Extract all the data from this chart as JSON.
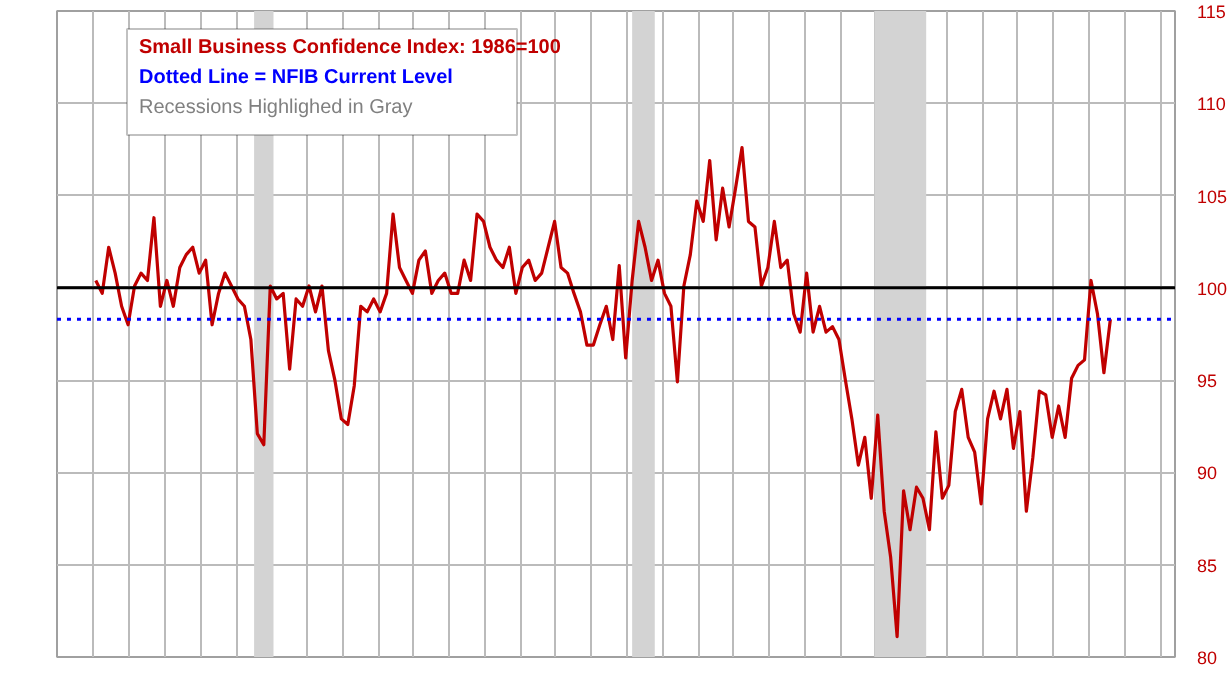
{
  "chart_data": {
    "type": "line",
    "title": "Small Business Confidence Index: 1986=100",
    "annotations": [
      "Dotted Line = NFIB Current Level",
      "Recessions Highlighed in Gray"
    ],
    "categories": [
      null,
      null,
      null,
      null,
      null,
      null,
      null,
      null,
      null,
      null,
      null,
      null,
      null,
      null,
      null,
      null,
      null,
      null,
      null,
      null,
      null,
      null,
      null,
      null,
      null,
      null,
      null,
      null,
      null,
      null,
      null,
      null,
      null,
      null,
      null,
      null,
      null,
      null,
      null,
      null,
      null,
      null,
      null,
      null,
      null,
      null,
      null,
      null,
      null,
      null,
      null,
      null,
      null,
      null,
      null,
      null,
      null,
      null,
      null,
      null,
      null,
      null,
      null,
      null,
      null,
      null,
      null,
      null,
      null,
      null,
      null,
      null,
      null,
      null,
      null,
      null,
      null,
      null,
      null,
      null,
      null,
      null,
      null,
      null,
      null,
      null,
      null,
      null,
      null,
      null,
      null,
      null,
      null,
      null,
      null,
      null,
      null,
      null,
      null,
      null,
      null,
      null,
      null,
      null,
      null,
      null,
      null,
      null,
      null,
      null,
      null,
      null,
      null,
      null,
      null,
      null,
      null,
      null,
      null,
      null,
      null,
      null,
      null,
      null,
      null,
      null,
      null,
      null,
      null,
      null,
      null,
      null,
      null,
      null,
      null,
      null,
      null,
      null,
      null,
      null,
      null,
      null,
      null,
      null,
      null,
      null,
      null,
      null,
      null,
      null,
      null,
      null,
      null,
      null,
      null,
      null,
      null,
      null
    ],
    "series": [
      {
        "color": "#c00000",
        "values": [
          100.4,
          99.7,
          102.2,
          100.8,
          99.0,
          98.0,
          100.1,
          100.8,
          100.4,
          103.8,
          99.0,
          100.4,
          99.0,
          101.1,
          101.8,
          102.2,
          100.8,
          101.5,
          98.0,
          99.7,
          100.8,
          100.1,
          99.4,
          99.0,
          97.2,
          92.1,
          91.5,
          100.1,
          99.4,
          99.7,
          95.6,
          99.4,
          99.0,
          100.1,
          98.7,
          100.1,
          96.6,
          95.0,
          92.9,
          92.6,
          94.7,
          99.0,
          98.7,
          99.4,
          98.7,
          99.7,
          104.0,
          101.1,
          100.4,
          99.7,
          101.5,
          102.0,
          99.7,
          100.4,
          100.8,
          99.7,
          99.7,
          101.5,
          100.4,
          104.0,
          103.6,
          102.2,
          101.5,
          101.1,
          102.2,
          99.7,
          101.1,
          101.5,
          100.4,
          100.8,
          102.2,
          103.6,
          101.1,
          100.8,
          99.7,
          98.7,
          96.9,
          96.9,
          98.0,
          99.0,
          97.2,
          101.2,
          96.2,
          100.4,
          103.6,
          102.2,
          100.4,
          101.5,
          99.7,
          99.0,
          94.9,
          100.1,
          101.8,
          104.7,
          103.6,
          106.9,
          102.6,
          105.4,
          103.3,
          105.4,
          107.6,
          103.6,
          103.3,
          100.1,
          101.1,
          103.6,
          101.1,
          101.5,
          98.6,
          97.6,
          100.8,
          97.6,
          99.0,
          97.6,
          97.9,
          97.2,
          95.0,
          92.9,
          90.4,
          91.9,
          88.6,
          93.1,
          87.9,
          85.4,
          81.1,
          89.0,
          86.9,
          89.2,
          88.6,
          86.9,
          92.2,
          88.6,
          89.3,
          93.3,
          94.5,
          91.9,
          91.1,
          88.3,
          92.9,
          94.4,
          92.9,
          94.5,
          91.3,
          93.3,
          87.9,
          90.8,
          94.4,
          94.2,
          91.9,
          93.6,
          91.9,
          95.1,
          95.8,
          96.1,
          100.4,
          98.6,
          95.4,
          98.3
        ]
      }
    ],
    "ylim": [
      80,
      115
    ],
    "yticks": [
      80,
      85,
      90,
      95,
      100,
      105,
      110,
      115
    ],
    "ref_lines": [
      {
        "axis": "y",
        "value": 100,
        "color": "#000000",
        "line_style": "solid"
      },
      {
        "axis": "y",
        "value": 98.3,
        "color": "#0000ff",
        "line_style": "dotted"
      }
    ],
    "grid": true,
    "tick_labels": "y"
  }
}
